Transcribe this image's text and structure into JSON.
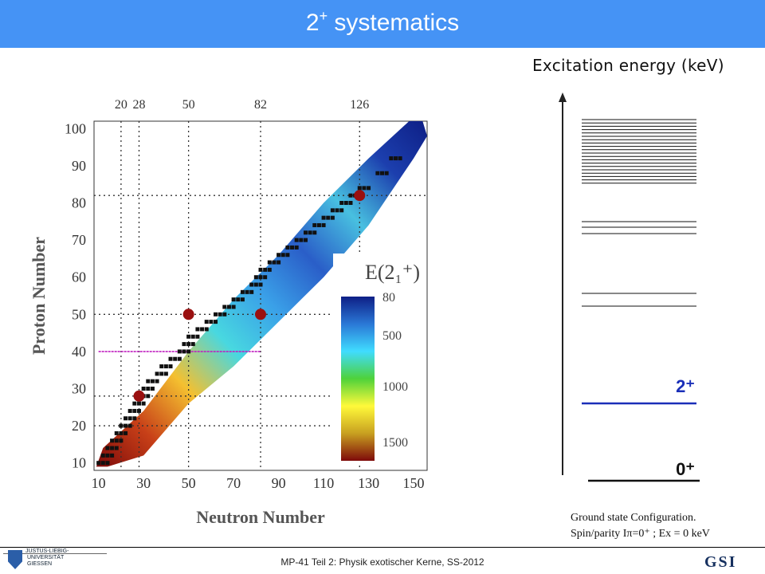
{
  "header": {
    "title_main": "2",
    "title_sup": "+",
    "title_rest": " systematics",
    "bg_color": "#4593f5"
  },
  "energy_axis_label": "Excitation energy (keV)",
  "level_labels": {
    "excited": "2⁺",
    "ground": "0⁺"
  },
  "caption": {
    "line1": "Ground state Configuration.",
    "line2": "Spin/parity Iπ=0⁺ ; Ex = 0 keV"
  },
  "footer": {
    "text": "MP-41 Teil 2: Physik exotischer Kerne, SS-2012",
    "logo_left": "JUSTUS-LIEBIG-\n UNIVERSITÄT\n GIESSEN",
    "logo_right": "GSI"
  },
  "chart_data": {
    "type": "heatmap",
    "title": "E(2₁⁺)",
    "xlabel": "Neutron Number",
    "ylabel": "Proton Number",
    "xlim": [
      8,
      156
    ],
    "ylim": [
      8,
      102
    ],
    "x_ticks": [
      10,
      30,
      50,
      70,
      90,
      110,
      130,
      150
    ],
    "y_ticks": [
      10,
      20,
      30,
      40,
      50,
      60,
      70,
      80,
      90,
      100
    ],
    "magic_x": [
      20,
      28,
      50,
      82,
      126
    ],
    "magic_y": [
      20,
      28,
      50,
      82
    ],
    "colorbar": {
      "ticks": [
        "80",
        "500",
        "1000",
        "1500"
      ],
      "colors": [
        "#7e0a0a",
        "#c8a020",
        "#fff93a",
        "#4ed23a",
        "#40dcff",
        "#2a78d6",
        "#0e1f86"
      ]
    },
    "highlight_line_y": 40,
    "stable_nuclei": [
      [
        12,
        10
      ],
      [
        14,
        12
      ],
      [
        16,
        14
      ],
      [
        18,
        16
      ],
      [
        20,
        18
      ],
      [
        22,
        20
      ],
      [
        24,
        22
      ],
      [
        26,
        24
      ],
      [
        28,
        26
      ],
      [
        30,
        28
      ],
      [
        32,
        30
      ],
      [
        34,
        32
      ],
      [
        38,
        34
      ],
      [
        40,
        36
      ],
      [
        44,
        38
      ],
      [
        48,
        40
      ],
      [
        50,
        42
      ],
      [
        52,
        44
      ],
      [
        56,
        46
      ],
      [
        60,
        48
      ],
      [
        64,
        50
      ],
      [
        68,
        52
      ],
      [
        72,
        54
      ],
      [
        76,
        56
      ],
      [
        80,
        58
      ],
      [
        82,
        60
      ],
      [
        84,
        62
      ],
      [
        88,
        64
      ],
      [
        92,
        66
      ],
      [
        96,
        68
      ],
      [
        100,
        70
      ],
      [
        104,
        72
      ],
      [
        108,
        74
      ],
      [
        112,
        76
      ],
      [
        116,
        78
      ],
      [
        120,
        80
      ],
      [
        124,
        82
      ],
      [
        128,
        84
      ],
      [
        136,
        88
      ],
      [
        142,
        92
      ]
    ],
    "hotspots": [
      [
        28,
        28
      ],
      [
        50,
        50
      ],
      [
        82,
        50
      ],
      [
        126,
        82
      ]
    ]
  }
}
